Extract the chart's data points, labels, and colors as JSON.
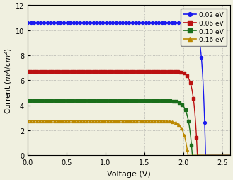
{
  "title": "",
  "xlabel": "Voltage (V)",
  "ylabel": "Current $(mA/cm^2)$",
  "xlim": [
    0.0,
    2.6
  ],
  "ylim": [
    0.0,
    12.0
  ],
  "xticks": [
    0.0,
    0.5,
    1.0,
    1.5,
    2.0,
    2.5
  ],
  "yticks": [
    0,
    2,
    4,
    6,
    8,
    10,
    12
  ],
  "series": [
    {
      "label": "0.02 eV",
      "color": "#1a1aee",
      "marker": "o",
      "jsc": 10.62,
      "voc": 2.285,
      "n": 25,
      "marker_color": "#1a1aee"
    },
    {
      "label": "0.06 eV",
      "color": "#bb1111",
      "marker": "s",
      "jsc": 6.72,
      "voc": 2.18,
      "n": 22,
      "marker_color": "#bb1111"
    },
    {
      "label": "0.10 eV",
      "color": "#1a6e1a",
      "marker": "s",
      "jsc": 4.38,
      "voc": 2.115,
      "n": 20,
      "marker_color": "#1a6e1a"
    },
    {
      "label": "0.16 eV",
      "color": "#bb8800",
      "marker": "^",
      "jsc": 2.76,
      "voc": 2.06,
      "n": 18,
      "marker_color": "#bb8800"
    }
  ],
  "background_color": "#f0f0e0",
  "grid_color": "#999999",
  "n_markers": 55,
  "line_width": 1.0,
  "marker_size": 2.8
}
